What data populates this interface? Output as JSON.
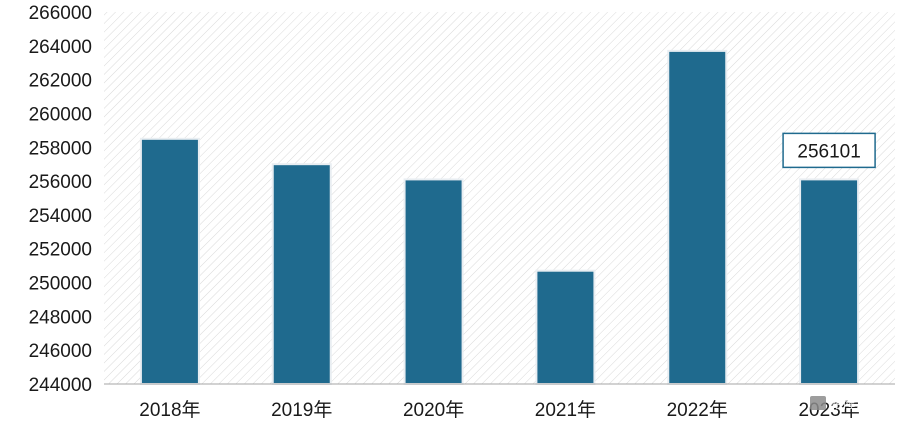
{
  "chart_data": {
    "type": "bar",
    "categories": [
      "2018年",
      "2019年",
      "2020年",
      "2021年",
      "2022年",
      "2023年"
    ],
    "values": [
      258500,
      257000,
      256100,
      250700,
      263700,
      256101
    ],
    "data_labels": [
      {
        "index": 5,
        "text": "256101"
      }
    ],
    "ylim": [
      244000,
      266000
    ],
    "yticks": [
      "244000",
      "246000",
      "248000",
      "250000",
      "252000",
      "254000",
      "256000",
      "258000",
      "260000",
      "262000",
      "264000",
      "266000"
    ],
    "ytick_step": 2000,
    "grid": false,
    "plot_background": "diagonal-hatch",
    "colors": {
      "bar": "#1F6A8E",
      "bar_edge": "#E9EEF2",
      "hatch": "#D9D9D9",
      "axis": "#A6A6A6"
    }
  },
  "watermark": {
    "text": "格隆汇",
    "icon": "watermark-logo-icon"
  }
}
